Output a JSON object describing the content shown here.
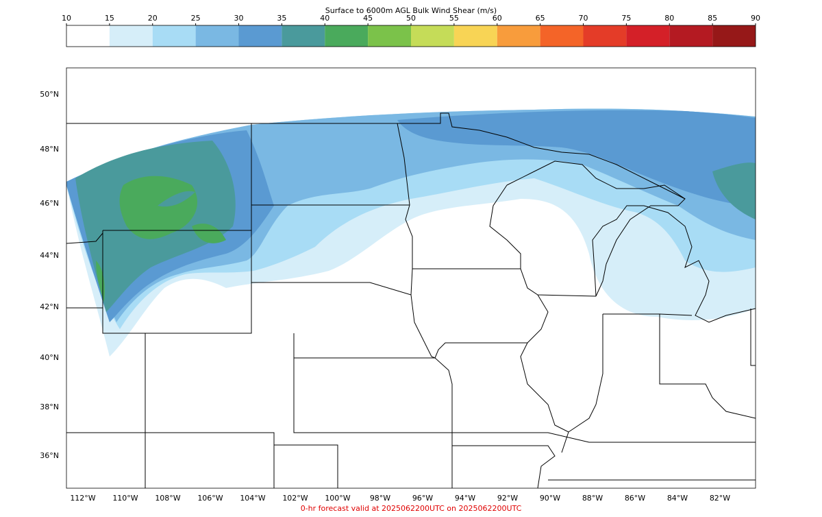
{
  "colorbar": {
    "title": "Surface to 6000m AGL Bulk Wind Shear (m/s)",
    "ticks": [
      10,
      15,
      20,
      25,
      30,
      35,
      40,
      45,
      50,
      55,
      60,
      65,
      70,
      75,
      80,
      85,
      90
    ],
    "colors": [
      "#ffffff",
      "#d6eef9",
      "#a8dcf5",
      "#7ab8e3",
      "#5a9ad2",
      "#4a9a9c",
      "#4aaa5c",
      "#7bc24a",
      "#c5dc58",
      "#f8d455",
      "#f89c3c",
      "#f46428",
      "#e43c28",
      "#d42028",
      "#b41a22",
      "#961818"
    ]
  },
  "lat_labels": [
    "50°N",
    "48°N",
    "46°N",
    "44°N",
    "42°N",
    "40°N",
    "38°N",
    "36°N"
  ],
  "lon_labels": [
    "112°W",
    "110°W",
    "108°W",
    "106°W",
    "104°W",
    "102°W",
    "100°W",
    "98°W",
    "96°W",
    "94°W",
    "92°W",
    "90°W",
    "88°W",
    "86°W",
    "84°W",
    "82°W"
  ],
  "footer": "0-hr forecast valid at 2025062200UTC on 2025062200UTC"
}
